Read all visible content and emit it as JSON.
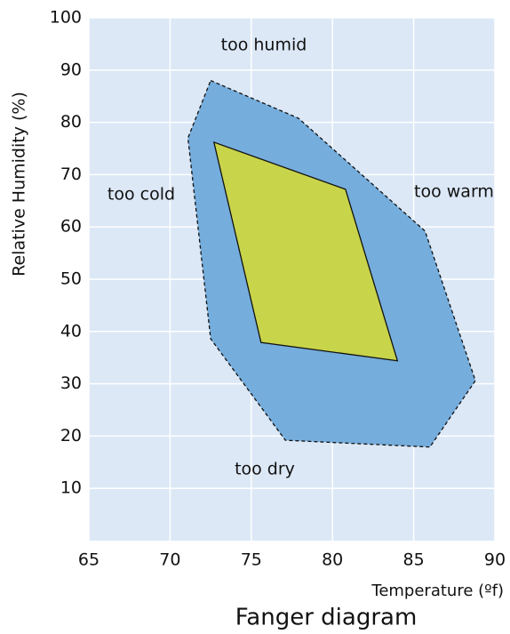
{
  "chart_data": {
    "type": "polygon",
    "title": "Fanger diagram",
    "x_label": "Temperature (ºf)",
    "y_label": "Relative Humidity (%)",
    "xlim": [
      65,
      90
    ],
    "xticks": [
      65,
      70,
      75,
      80,
      85,
      90
    ],
    "ylim": [
      0,
      100
    ],
    "yticks": [
      10,
      20,
      30,
      40,
      50,
      60,
      70,
      80,
      90,
      100
    ],
    "grid": true,
    "background": "#dce8f6",
    "series": [
      {
        "color": "#75addc",
        "dashed": true,
        "x": [
          72.5,
          77.9,
          85.7,
          88.8,
          86.0,
          77.1,
          72.5,
          71.1
        ],
        "y": [
          88,
          80.8,
          59.2,
          30.6,
          17.9,
          19.2,
          38.6,
          77
        ]
      },
      {
        "color": "#c8d44a",
        "dashed": false,
        "x": [
          72.7,
          80.8,
          84.0,
          75.6
        ],
        "y": [
          76.2,
          67.2,
          34.4,
          37.9
        ]
      }
    ],
    "annotations": [
      "too humid",
      "too warm",
      "too dry",
      "too cold"
    ]
  }
}
